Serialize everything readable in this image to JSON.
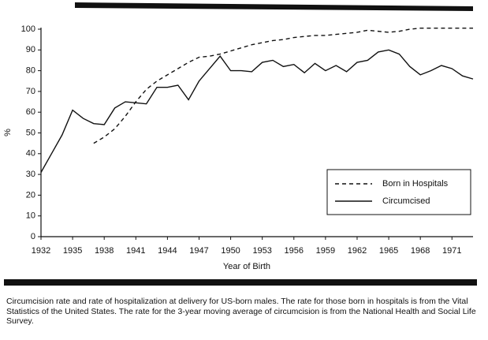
{
  "chart_data": {
    "type": "line",
    "x": [
      1932,
      1933,
      1934,
      1935,
      1936,
      1937,
      1938,
      1939,
      1940,
      1941,
      1942,
      1943,
      1944,
      1945,
      1946,
      1947,
      1948,
      1949,
      1950,
      1951,
      1952,
      1953,
      1954,
      1955,
      1956,
      1957,
      1958,
      1959,
      1960,
      1961,
      1962,
      1963,
      1964,
      1965,
      1966,
      1967,
      1968,
      1969,
      1970,
      1971,
      1972,
      1973
    ],
    "series": [
      {
        "name": "Born in Hospitals",
        "color": "#111111",
        "dash": true,
        "values": [
          null,
          null,
          null,
          null,
          null,
          45,
          48,
          52,
          58,
          65,
          71,
          75,
          78,
          81,
          84,
          86.5,
          87,
          88,
          89.5,
          91,
          92.5,
          93.5,
          94.5,
          95,
          96,
          96.5,
          97,
          97,
          97.5,
          98,
          98.5,
          99.5,
          99,
          98.5,
          99,
          100,
          100.5,
          100.5,
          100.5,
          100.5,
          100.5,
          100.5
        ]
      },
      {
        "name": "Circumcised",
        "color": "#111111",
        "dash": false,
        "values": [
          31,
          40,
          49,
          61,
          57,
          54.5,
          54,
          62,
          65,
          64.5,
          64,
          72,
          72,
          73,
          66,
          75,
          81,
          87,
          80,
          80,
          79.5,
          84,
          85,
          82,
          83,
          79,
          83.5,
          80,
          82.5,
          79.5,
          84,
          85,
          89,
          90,
          88,
          82,
          78,
          80,
          82.5,
          81,
          77.5,
          76
        ]
      }
    ],
    "xlim": [
      1932,
      1973
    ],
    "ylim": [
      0,
      100
    ],
    "xticks": [
      1932,
      1935,
      1938,
      1941,
      1944,
      1947,
      1950,
      1953,
      1956,
      1959,
      1962,
      1965,
      1968,
      1971
    ],
    "yticks": [
      0,
      10,
      20,
      30,
      40,
      50,
      60,
      70,
      80,
      90,
      100
    ],
    "xlabel": "Year of Birth",
    "ylabel": "%",
    "caption": "Circumcision rate and rate of hospitalization at delivery for US-born males. The rate for those born in hospitals is from the Vital Statistics of the United States. The rate for the 3-year moving average of circumcision is from the National Health and Social Life Survey."
  }
}
